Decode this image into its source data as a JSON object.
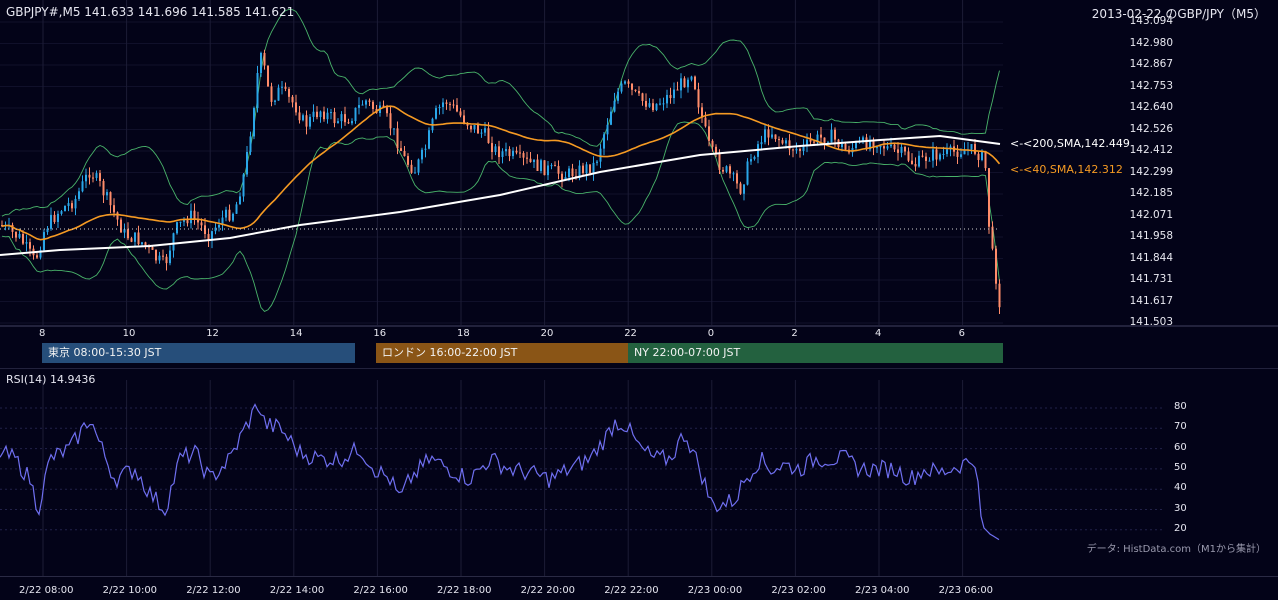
{
  "header": {
    "symbol_info": "GBPJPY#,M5 141.633 141.696 141.585 141.621",
    "date_title": "2013-02-22 のGBP/JPY（M5）"
  },
  "main_chart": {
    "y_ticks": [
      "143.094",
      "142.980",
      "142.867",
      "142.753",
      "142.640",
      "142.526",
      "142.412",
      "142.299",
      "142.185",
      "142.071",
      "141.958",
      "141.844",
      "141.731",
      "141.617",
      "141.503"
    ],
    "x_ticks": [
      "8",
      "10",
      "12",
      "14",
      "16",
      "18",
      "20",
      "22",
      "0",
      "2",
      "4",
      "6"
    ],
    "sma200_label": "<-<200,SMA,142.449",
    "sma40_label": "<-<40,SMA,142.312",
    "sma200_color": "#ffffff",
    "sma40_color": "#f59a23",
    "bull_color": "#2aa6e8",
    "bear_color": "#ff8c6a",
    "bollinger_color": "#49b36a"
  },
  "sessions": [
    {
      "label": "東京 08:00-15:30 JST",
      "color": "#264e7a"
    },
    {
      "label": "ロンドン 16:00-22:00 JST",
      "color": "#8a5516"
    },
    {
      "label": "NY 22:00-07:00 JST",
      "color": "#23613f"
    }
  ],
  "rsi": {
    "title": "RSI(14) 14.9436",
    "y_ticks": [
      "80",
      "70",
      "60",
      "50",
      "40",
      "30",
      "20"
    ],
    "color": "#6f6ff0"
  },
  "bottom_axis": {
    "labels": [
      "2/22 08:00",
      "2/22 10:00",
      "2/22 12:00",
      "2/22 14:00",
      "2/22 16:00",
      "2/22 18:00",
      "2/22 20:00",
      "2/22 22:00",
      "2/23 00:00",
      "2/23 02:00",
      "2/23 04:00",
      "2/23 06:00"
    ]
  },
  "source_note": "データ: HistData.com（M1から集計）",
  "chart_data": [
    {
      "type": "candlestick",
      "title": "2013-02-22 のGBP/JPY（M5）",
      "ylim": [
        141.503,
        143.094
      ],
      "x": [
        "8",
        "10",
        "12",
        "14",
        "16",
        "18",
        "20",
        "22",
        "0",
        "2",
        "4",
        "6"
      ],
      "series": [
        {
          "name": "200,SMA",
          "last": 142.449
        },
        {
          "name": "40,SMA",
          "last": 142.312
        }
      ],
      "last_close": 141.621
    },
    {
      "type": "line",
      "title": "RSI(14) 14.9436",
      "ylim": [
        15,
        85
      ],
      "last": 14.9436
    }
  ]
}
